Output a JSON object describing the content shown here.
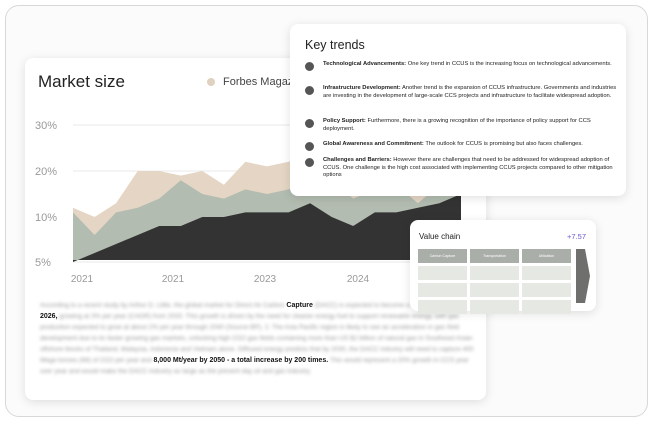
{
  "market": {
    "title": "Market size",
    "legend_label": "Forbes Magazin"
  },
  "chart_data": {
    "type": "area",
    "title": "",
    "xlabel": "",
    "ylabel": "",
    "y_ticks": [
      "30%",
      "20%",
      "10%",
      "5%"
    ],
    "x_ticks": [
      "2021",
      "2021",
      "2023",
      "2024"
    ],
    "ylim": [
      5,
      30
    ],
    "grid": true,
    "series": [
      {
        "color": "#e5d5c4",
        "values": [
          12,
          10,
          13,
          20,
          20,
          19,
          20,
          17,
          22,
          21,
          22,
          24,
          27,
          22,
          24,
          25,
          28,
          26,
          24
        ]
      },
      {
        "color": "#b3bcb0",
        "values": [
          11,
          8,
          11,
          12,
          14,
          18,
          15,
          14,
          16,
          15,
          16,
          19,
          18,
          14,
          16,
          17,
          13,
          17,
          17
        ]
      },
      {
        "color": "#333333",
        "values": [
          5,
          6,
          7,
          8,
          9,
          9,
          10,
          10,
          11,
          11,
          11,
          13,
          10,
          9,
          11,
          11,
          12,
          13,
          15
        ]
      }
    ]
  },
  "paragraph": {
    "intro": "According to a recent study by Arthur D. Little, the global market for Direct Air Carbon",
    "highlight1": "Capture",
    "mid1": "(DACC) is expected to become a",
    "highlight2": "$9 billion market by 2026,",
    "mid2": "growing at 3% per year (CAGR) from 2020. This growth is driven by the need for cleaner energy fuel to support renewable energy, with gas production expected to grow at about 2% per year through 2040 (Source BP). 2. The Asia Pacific region is likely to see an acceleration in gas field development due to its faster growing gas markets, unlocking high CO2 gas fields containing more than US $2 billion of natural gas in Southeast Asian offshore blocks of Thailand, Malaysia, Indonesia and Vietnam alone. Diffused energy predicts that by 2030, the DACC industry will need to capture 400 Mega tonnes (Mt) of CO2 per year and",
    "highlight3": "8,000 Mt/year by 2050 - a total increase by 200 times.",
    "end": "This would represent a 20% growth in CCS year over year and would make the DACC industry as large as the present day oil and gas industry."
  },
  "trends": {
    "title": "Key trends",
    "items": [
      {
        "icon": "gear-icon",
        "label": "Technological Advancements:",
        "text": "One key trend in CCUS is the increasing focus on technological advancements."
      },
      {
        "icon": "building-icon",
        "label": "Infrastructure Development:",
        "text": "Another trend is the expansion of CCUS infrastructure. Governments and industries are investing in the development of large-scale CCS projects and infrastructure to facilitate widespread adoption."
      },
      {
        "icon": "policy-icon",
        "label": "Policy Support:",
        "text": "Furthermore, there is a growing recognition of the importance of policy support for CCS deployment."
      },
      {
        "icon": "globe-icon",
        "label": "Global Awareness and Commitment:",
        "text": "The outlook for CCUS is promising but also faces challenges."
      },
      {
        "icon": "warning-icon",
        "label": "Challenges and Barriers:",
        "text": "However there are challenges that need to be addressed for widespread adoption of CCUS. One challenge is the high cost associated with implementing CCUS projects compared to other mitigation options"
      }
    ]
  },
  "value_chain": {
    "title": "Value chain",
    "delta": "+7.57",
    "headers": [
      "Carbon Capture",
      "Transportation",
      "Utilization"
    ]
  }
}
